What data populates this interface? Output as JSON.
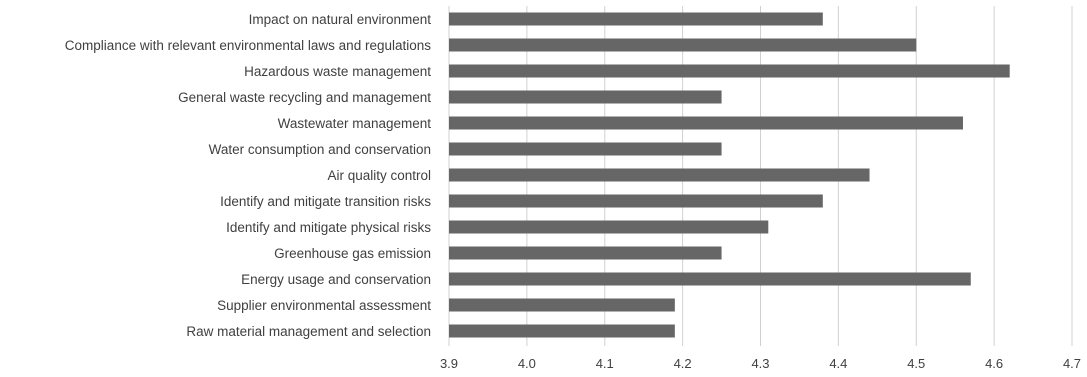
{
  "chart_data": {
    "type": "bar",
    "orientation": "horizontal",
    "categories": [
      "Impact on natural environment",
      "Compliance with relevant environmental laws and regulations",
      "Hazardous waste management",
      "General waste recycling and management",
      "Wastewater management",
      "Water consumption and conservation",
      "Air quality control",
      "Identify and mitigate transition risks",
      "Identify and mitigate physical risks",
      "Greenhouse gas emission",
      "Energy usage and conservation",
      "Supplier environmental assessment",
      "Raw material management and selection"
    ],
    "values": [
      4.38,
      4.5,
      4.62,
      4.25,
      4.56,
      4.25,
      4.44,
      4.38,
      4.31,
      4.25,
      4.57,
      4.19,
      4.19
    ],
    "xlim": [
      3.9,
      4.7
    ],
    "xticks": [
      "3.9",
      "4.0",
      "4.1",
      "4.2",
      "4.3",
      "4.4",
      "4.5",
      "4.6",
      "4.7"
    ],
    "title": "",
    "xlabel": "",
    "ylabel": "",
    "grid": "vertical",
    "legend": "none",
    "colors": {
      "bar": "#666666",
      "grid": "#d0d0d0",
      "text": "#404040",
      "background": "#ffffff"
    }
  }
}
